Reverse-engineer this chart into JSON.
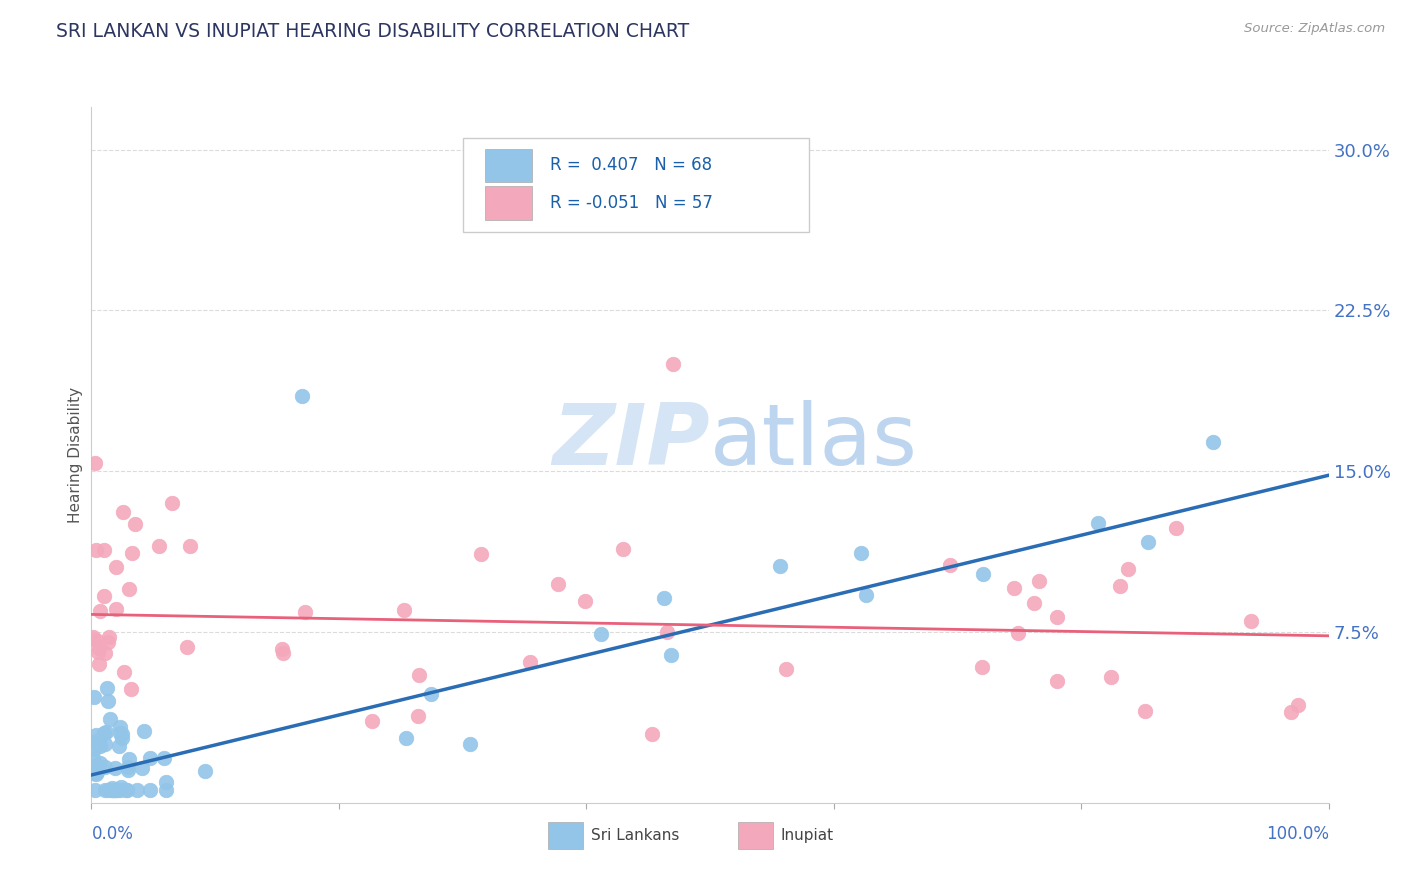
{
  "title": "SRI LANKAN VS INUPIAT HEARING DISABILITY CORRELATION CHART",
  "source": "Source: ZipAtlas.com",
  "ylabel": "Hearing Disability",
  "xlim": [
    0.0,
    1.0
  ],
  "ylim": [
    -0.005,
    0.32
  ],
  "ytick_vals": [
    0.075,
    0.15,
    0.225,
    0.3
  ],
  "ytick_labels": [
    "7.5%",
    "15.0%",
    "22.5%",
    "30.0%"
  ],
  "sri_lankan_color": "#92C5E8",
  "inupiat_color": "#F4A8BC",
  "sri_lankan_line_color": "#2A6DB5",
  "inupiat_line_color": "#E8607A",
  "title_color": "#2D3561",
  "axis_label_color": "#4472C4",
  "watermark_color": "#D5E5F5",
  "R_sri": 0.407,
  "N_sri": 68,
  "R_inupiat": -0.051,
  "N_inupiat": 57,
  "sri_line_x0": 0.0,
  "sri_line_y0": 0.008,
  "sri_line_x1": 1.0,
  "sri_line_y1": 0.148,
  "inupiat_line_x0": 0.0,
  "inupiat_line_y0": 0.083,
  "inupiat_line_x1": 1.0,
  "inupiat_line_y1": 0.073,
  "background_color": "#FFFFFF",
  "grid_color": "#CCCCCC",
  "legend_text_color": "#1A1A7A",
  "legend_r_color": "#1A5FAA",
  "legend_n_color": "#1A5FAA"
}
